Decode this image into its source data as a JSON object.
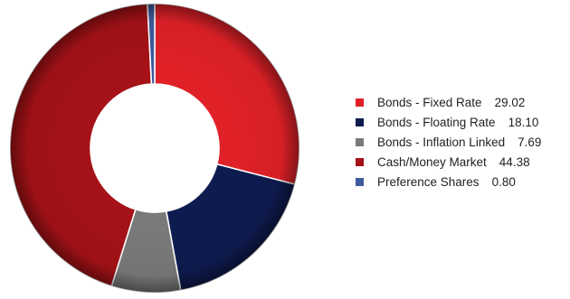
{
  "chart_data": {
    "type": "pie",
    "variant": "donut",
    "title": "",
    "legend_position": "right",
    "series": [
      {
        "label": "Bonds - Fixed Rate",
        "value": 29.02,
        "value_text": "29.02",
        "color": "#e02128"
      },
      {
        "label": "Bonds - Floating Rate",
        "value": 18.1,
        "value_text": "18.10",
        "color": "#0e1b4f"
      },
      {
        "label": "Bonds - Inflation Linked",
        "value": 7.69,
        "value_text": "7.69",
        "color": "#7a7a7a"
      },
      {
        "label": "Cash/Money Market",
        "value": 44.38,
        "value_text": "44.38",
        "color": "#a51217"
      },
      {
        "label": "Preference Shares",
        "value": 0.8,
        "value_text": "0.80",
        "color": "#3f5a9c"
      }
    ]
  }
}
